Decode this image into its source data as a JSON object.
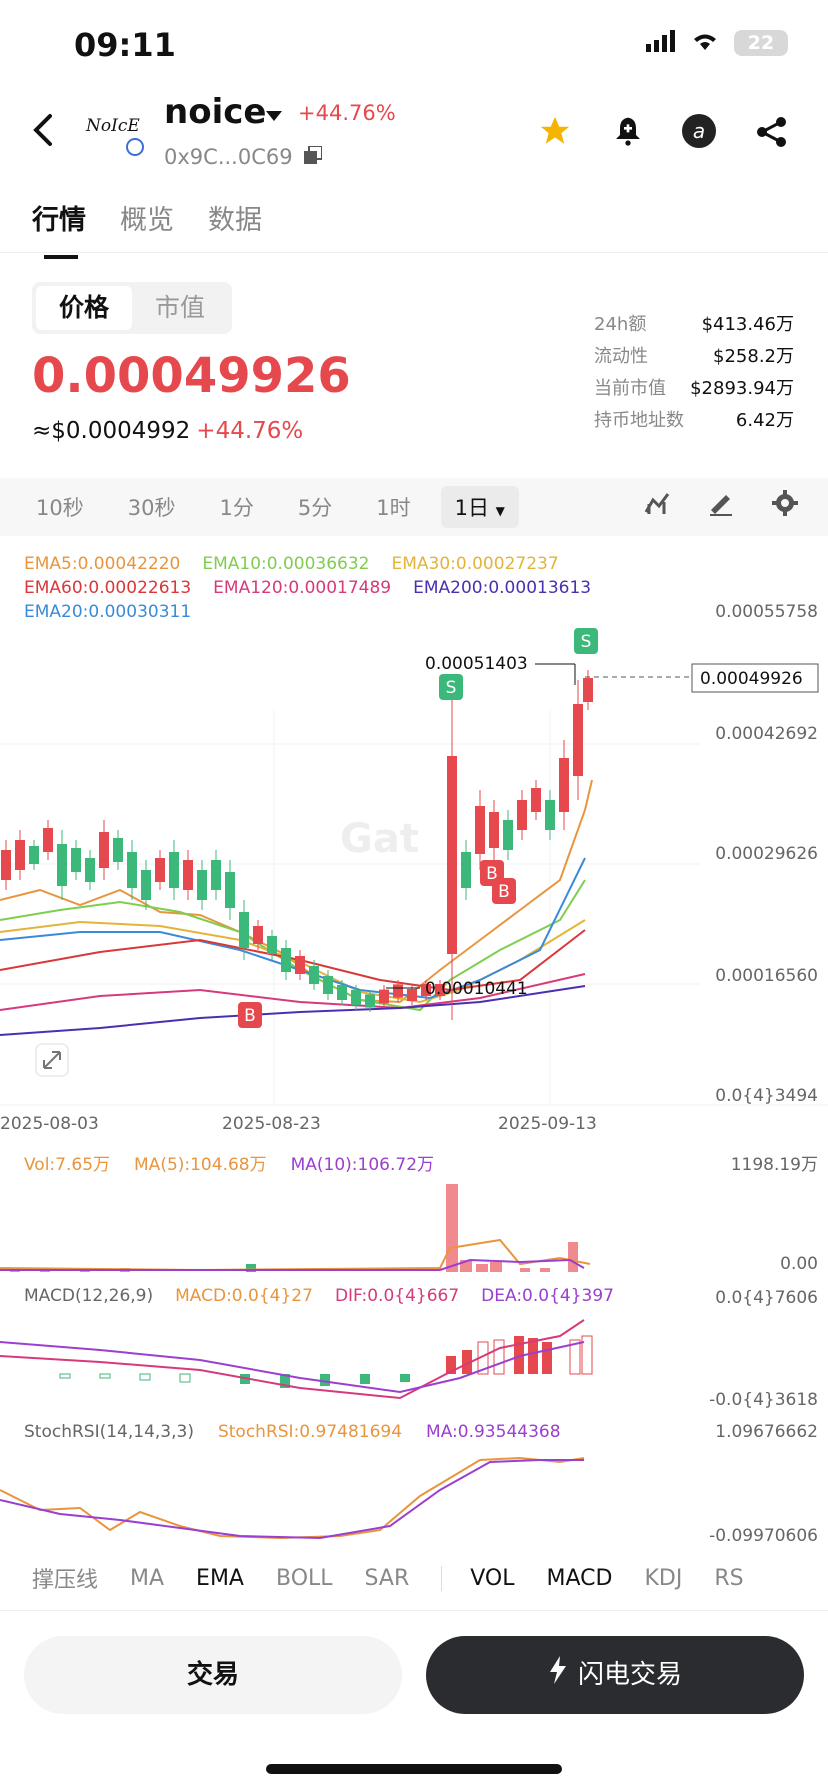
{
  "status": {
    "time": "09:11",
    "battery": "22"
  },
  "header": {
    "title": "noice",
    "change": "+44.76%",
    "address": "0x9C...0C69",
    "logo_text": "NoIcE"
  },
  "tabs": [
    "行情",
    "概览",
    "数据"
  ],
  "segment": [
    "价格",
    "市值"
  ],
  "price": {
    "main": "0.00049926",
    "usd": "≈$0.0004992",
    "change": "+44.76%"
  },
  "stats": [
    {
      "k": "24h额",
      "v": "$413.46万"
    },
    {
      "k": "流动性",
      "v": "$258.2万"
    },
    {
      "k": "当前市值",
      "v": "$2893.94万"
    },
    {
      "k": "持币地址数",
      "v": "6.42万"
    }
  ],
  "timeframes": [
    "10秒",
    "30秒",
    "1分",
    "5分",
    "1时"
  ],
  "timeframe_selected": "1日",
  "ema_legend": {
    "ema5": "EMA5:0.00042220",
    "ema10": "EMA10:0.00036632",
    "ema30": "EMA30:0.00027237",
    "ema60": "EMA60:0.00022613",
    "ema120": "EMA120:0.00017489",
    "ema200": "EMA200:0.00013613",
    "ema20": "EMA20:0.00030311"
  },
  "price_axis": [
    "0.00055758",
    "0.00042692",
    "0.00029626",
    "0.00016560",
    "0.0{4}3494"
  ],
  "annotations": {
    "high": "0.00051403",
    "low": "0.00010441",
    "current": "0.00049926"
  },
  "dates": [
    "2025-08-03",
    "2025-08-23",
    "2025-09-13"
  ],
  "vol": {
    "vol": "Vol:7.65万",
    "ma5": "MA(5):104.68万",
    "ma10": "MA(10):106.72万",
    "max": "1198.19万",
    "min": "0.00"
  },
  "macd": {
    "label": "MACD(12,26,9)",
    "macd": "MACD:0.0{4}27",
    "dif": "DIF:0.0{4}667",
    "dea": "DEA:0.0{4}397",
    "max": "0.0{4}7606",
    "min": "-0.0{4}3618"
  },
  "stoch": {
    "label": "StochRSI(14,14,3,3)",
    "k": "StochRSI:0.97481694",
    "ma": "MA:0.93544368",
    "max": "1.09676662",
    "min": "-0.09970606"
  },
  "bottom_tabs": [
    "撑压线",
    "MA",
    "EMA",
    "BOLL",
    "SAR",
    "VOL",
    "MACD",
    "KDJ",
    "RS"
  ],
  "buttons": {
    "trade": "交易",
    "flash": "闪电交易"
  },
  "markers": {
    "buy": "B",
    "sell": "S"
  },
  "colors": {
    "up": "#e5484d",
    "down": "#3cb97a",
    "accent_star": "#f5b400"
  }
}
